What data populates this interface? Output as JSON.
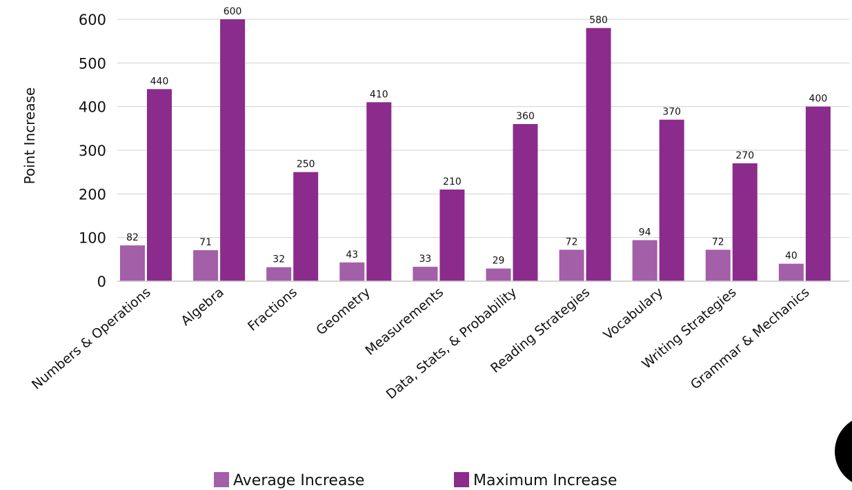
{
  "chart_data": {
    "type": "bar",
    "title": "",
    "xlabel": "",
    "ylabel": "Point Increase",
    "ylim": [
      0,
      600
    ],
    "yticks": [
      0,
      100,
      200,
      300,
      400,
      500,
      600
    ],
    "grid": "horizontal",
    "legend": "bottom",
    "categories": [
      "Numbers & Operations",
      "Algebra",
      "Fractions",
      "Geometry",
      "Measurements",
      "Data, Stats, & Probability",
      "Reading Strategies",
      "Vocabulary",
      "Writing Strategies",
      "Grammar & Mechanics"
    ],
    "series": [
      {
        "name": "Average Increase",
        "color": "#a35fa8",
        "values": [
          82,
          71,
          32,
          43,
          33,
          29,
          72,
          94,
          72,
          40
        ]
      },
      {
        "name": "Maximum Increase",
        "color": "#8b2b8c",
        "values": [
          440,
          600,
          250,
          410,
          210,
          360,
          580,
          370,
          270,
          400
        ]
      }
    ]
  }
}
